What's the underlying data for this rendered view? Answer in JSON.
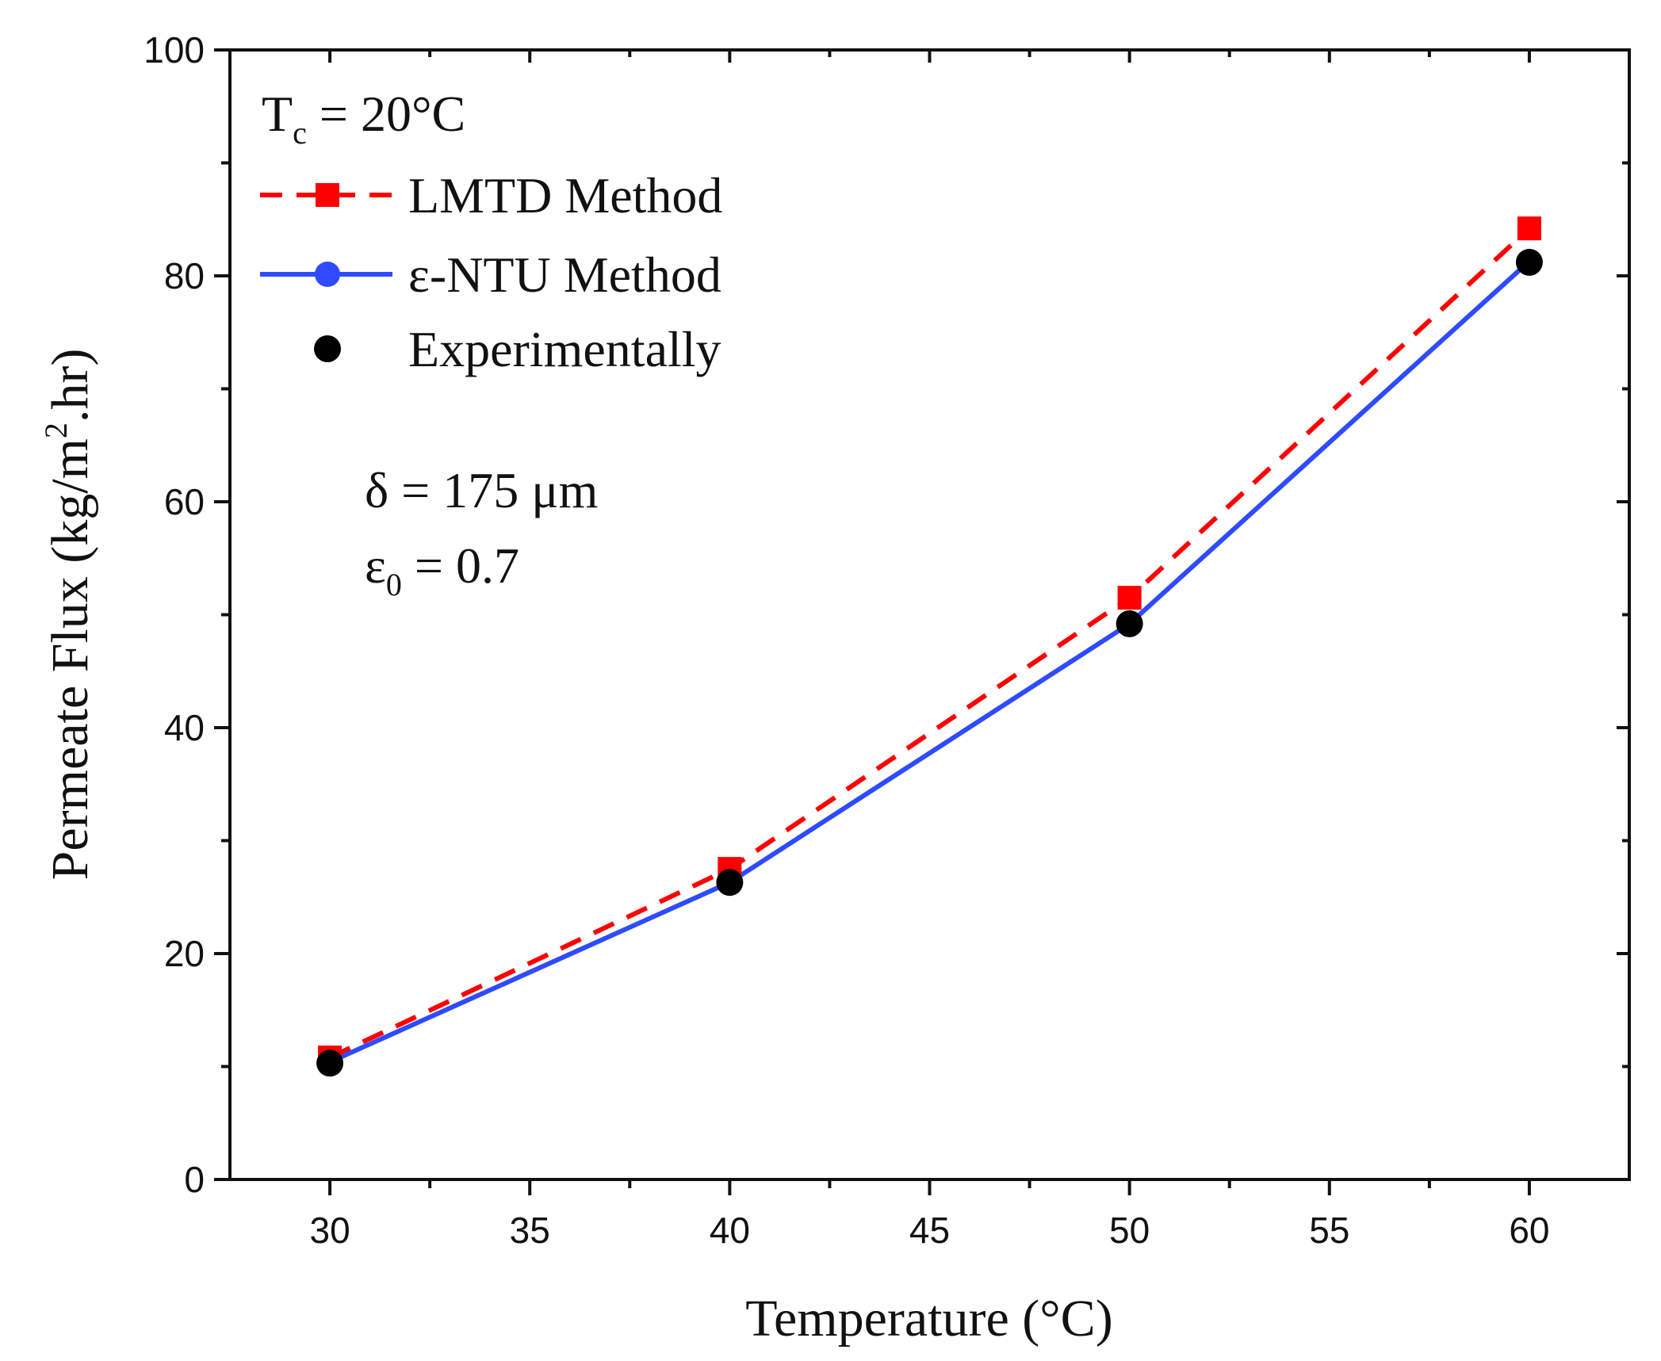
{
  "chart_data": {
    "type": "line",
    "xlabel": "Temperature (°C)",
    "ylabel_parts": [
      "Permeate Flux (kg/m",
      "2",
      ".hr)"
    ],
    "xlim": [
      27.5,
      62.5
    ],
    "ylim": [
      0,
      100
    ],
    "x_ticks": [
      30,
      35,
      40,
      45,
      50,
      55,
      60
    ],
    "y_ticks": [
      0,
      20,
      40,
      60,
      80,
      100
    ],
    "x": [
      30,
      40,
      50,
      60
    ],
    "series": [
      {
        "name": "LMTD Method",
        "style": "dashed",
        "marker": "square",
        "color": "#ff0000",
        "values": [
          10.8,
          27.5,
          51.5,
          84.2
        ]
      },
      {
        "name": "ε-NTU Method",
        "style": "solid",
        "marker": "circle",
        "color": "#2e4bff",
        "values": [
          10.4,
          26.3,
          49.2,
          81.3
        ]
      },
      {
        "name": "Experimentally",
        "style": "none",
        "marker": "circle",
        "color": "#000000",
        "values": [
          10.3,
          26.3,
          49.2,
          81.2
        ]
      }
    ],
    "legend": {
      "position": "top-left",
      "header": {
        "base": "T",
        "sub": "c",
        "rest": " = 20°C"
      },
      "entries": [
        "LMTD Method",
        "ε-NTU Method",
        "Experimentally"
      ]
    },
    "annotations": {
      "delta": "δ = 175 μm",
      "epsilon": {
        "base": "ε",
        "sub": "0",
        "rest": " = 0.7"
      }
    },
    "grid": false
  }
}
